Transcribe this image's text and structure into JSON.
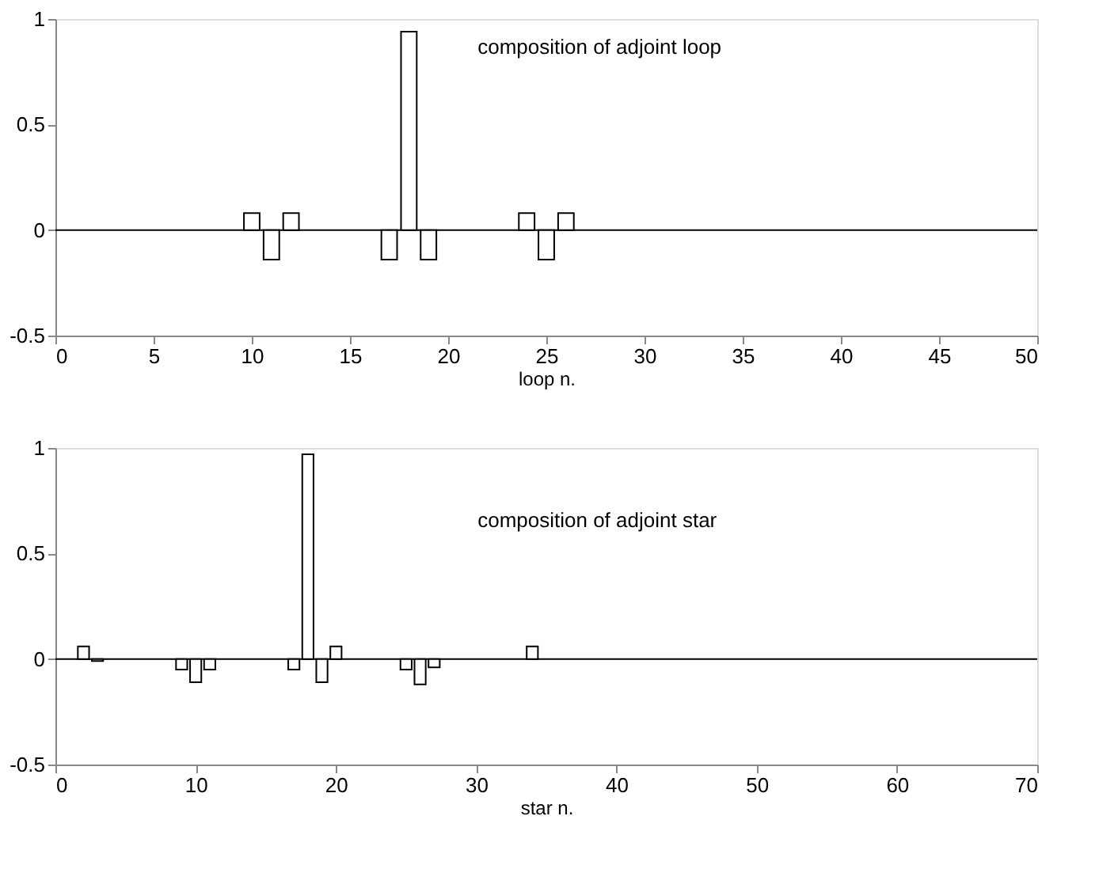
{
  "chart_data": [
    {
      "type": "bar",
      "xlabel": "loop n.",
      "annotations": [
        "composition of adjoint loop"
      ],
      "x": [
        10,
        11,
        12,
        17,
        18,
        19,
        24,
        25,
        26
      ],
      "values": [
        0.08,
        -0.14,
        0.08,
        -0.14,
        0.94,
        -0.14,
        0.08,
        -0.14,
        0.08
      ],
      "color": "#ffffff",
      "xlim": [
        0,
        50
      ],
      "xticks": [
        0,
        5,
        10,
        15,
        20,
        25,
        30,
        35,
        40,
        45,
        50
      ],
      "ylim": [
        -0.5,
        1
      ],
      "yticks": [
        -0.5,
        0,
        0.5,
        1
      ],
      "grid": false,
      "ref_lines": [
        {
          "axis": "y",
          "value": 0
        }
      ]
    },
    {
      "type": "bar",
      "xlabel": "star n.",
      "annotations": [
        "composition of adjoint star"
      ],
      "x": [
        2,
        3,
        9,
        10,
        11,
        17,
        18,
        19,
        20,
        25,
        26,
        27,
        34
      ],
      "values": [
        0.06,
        -0.01,
        -0.05,
        -0.11,
        -0.05,
        -0.05,
        0.97,
        -0.11,
        0.06,
        -0.05,
        -0.12,
        -0.04,
        0.06
      ],
      "color": "#ffffff",
      "xlim": [
        0,
        70
      ],
      "xticks": [
        0,
        10,
        20,
        30,
        40,
        50,
        60,
        70
      ],
      "ylim": [
        -0.5,
        1
      ],
      "yticks": [
        -0.5,
        0,
        0.5,
        1
      ],
      "grid": false,
      "ref_lines": [
        {
          "axis": "y",
          "value": 0
        }
      ]
    }
  ]
}
